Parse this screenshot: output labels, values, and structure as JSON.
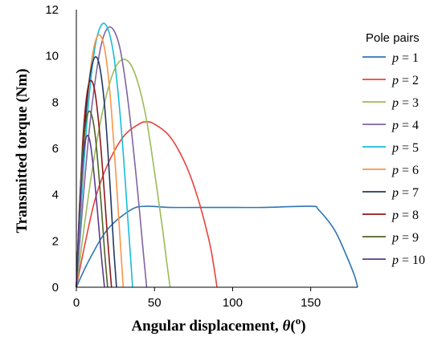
{
  "chart_data": {
    "type": "line",
    "title": "",
    "xlabel_text": "Angular displacement, ",
    "xlabel_theta": "θ",
    "xlabel_open": "(",
    "xlabel_unit": "o",
    "xlabel_close": ")",
    "ylabel": "Transmitted torque (Nm)",
    "xlim": [
      0,
      180
    ],
    "ylim": [
      0,
      12
    ],
    "xticks": [
      0,
      50,
      100,
      150
    ],
    "yticks": [
      0,
      2,
      4,
      6,
      8,
      10,
      12
    ],
    "grid": false,
    "legend": {
      "title": "Pole pairs",
      "placement": "right",
      "var": "p",
      "eq": " = "
    },
    "series": [
      {
        "name": "1",
        "color": "#2e75b6",
        "x": [
          0,
          8,
          20,
          35,
          45,
          60,
          90,
          120,
          150,
          155,
          165,
          172,
          178,
          180
        ],
        "y": [
          0,
          1.15,
          2.5,
          3.35,
          3.5,
          3.45,
          3.45,
          3.45,
          3.5,
          3.35,
          2.5,
          1.5,
          0.5,
          0
        ]
      },
      {
        "name": "2",
        "color": "#e8433d",
        "x": [
          0,
          5,
          12,
          20,
          30,
          40,
          45,
          50,
          60,
          70,
          78,
          85,
          88,
          90
        ],
        "y": [
          0,
          1.7,
          3.8,
          5.3,
          6.5,
          7.05,
          7.15,
          7.05,
          6.5,
          5.3,
          3.8,
          2.0,
          0.9,
          0
        ]
      },
      {
        "name": "3",
        "color": "#9bbb59",
        "x": [
          0,
          5,
          10,
          15,
          20,
          25,
          30,
          35,
          40,
          45,
          50,
          55,
          58,
          60
        ],
        "y": [
          0,
          2.6,
          5.0,
          7.0,
          8.5,
          9.5,
          9.85,
          9.6,
          8.7,
          7.2,
          5.0,
          2.6,
          1.0,
          0
        ]
      },
      {
        "name": "4",
        "color": "#8064a2",
        "x": [
          0,
          4,
          8,
          12,
          16,
          20,
          24,
          28,
          32,
          36,
          40,
          43,
          45
        ],
        "y": [
          0,
          3.5,
          6.6,
          8.9,
          10.5,
          11.2,
          11.1,
          10.3,
          8.6,
          6.3,
          3.6,
          1.4,
          0
        ]
      },
      {
        "name": "5",
        "color": "#17bcd8",
        "x": [
          0,
          3,
          6,
          9,
          12,
          15,
          18,
          21,
          24,
          27,
          30,
          33,
          35,
          36
        ],
        "y": [
          0,
          3.4,
          6.5,
          8.8,
          10.4,
          11.2,
          11.4,
          11.0,
          10.0,
          8.2,
          5.8,
          2.9,
          1.0,
          0
        ]
      },
      {
        "name": "6",
        "color": "#f79646",
        "x": [
          0,
          2.5,
          5,
          7.5,
          10,
          12.5,
          15,
          17.5,
          20,
          22.5,
          25,
          27.5,
          30
        ],
        "y": [
          0,
          3.4,
          6.3,
          8.4,
          9.9,
          10.7,
          10.9,
          10.5,
          9.4,
          7.6,
          5.2,
          2.6,
          0
        ]
      },
      {
        "name": "7",
        "color": "#1f3864",
        "x": [
          0,
          2,
          4,
          6,
          8,
          10,
          12,
          14,
          16,
          18,
          20,
          22,
          24,
          25.7
        ],
        "y": [
          0,
          3.0,
          5.5,
          7.4,
          8.8,
          9.6,
          9.95,
          9.8,
          9.1,
          7.9,
          6.1,
          3.9,
          1.6,
          0
        ]
      },
      {
        "name": "8",
        "color": "#8b1a1a",
        "x": [
          0,
          2,
          4,
          6,
          8,
          10,
          12,
          14,
          16,
          18,
          20,
          22.5
        ],
        "y": [
          0,
          3.5,
          6.2,
          7.9,
          8.8,
          8.9,
          8.4,
          7.3,
          5.8,
          4.0,
          2.1,
          0
        ]
      },
      {
        "name": "9",
        "color": "#4f6228",
        "x": [
          0,
          2,
          4,
          6,
          8,
          10,
          12,
          14,
          16,
          18,
          20
        ],
        "y": [
          0,
          3.4,
          5.8,
          7.1,
          7.6,
          7.4,
          6.6,
          5.2,
          3.5,
          1.6,
          0
        ]
      },
      {
        "name": "10",
        "color": "#5b3a8c",
        "x": [
          0,
          1.5,
          3,
          4.5,
          6,
          7.5,
          9,
          10.5,
          12,
          13.5,
          15,
          16.5,
          18
        ],
        "y": [
          0,
          2.5,
          4.4,
          5.7,
          6.4,
          6.55,
          6.2,
          5.4,
          4.4,
          3.3,
          2.1,
          1.0,
          0
        ]
      }
    ]
  }
}
